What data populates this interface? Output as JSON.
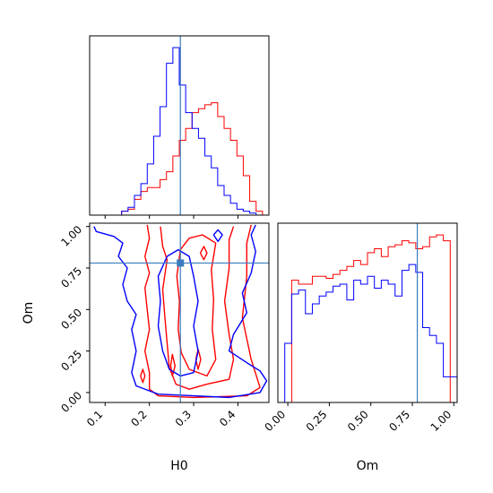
{
  "chart_data": {
    "type": "corner",
    "parameters": [
      "H0",
      "Om"
    ],
    "truths": {
      "H0": 0.27,
      "Om": 0.78
    },
    "colors": {
      "truth": "#3b7bbf",
      "series_a": "#ff0000",
      "series_b": "#0000ff",
      "axes": "#000000"
    },
    "marginals": [
      {
        "parameter": "H0",
        "xlim": [
          0.065,
          0.47
        ],
        "bins": 28,
        "series": [
          {
            "color": "#ff0000",
            "values": [
              0,
              0,
              0,
              0,
              0,
              0.02,
              0.03,
              0.08,
              0.12,
              0.14,
              0.14,
              0.18,
              0.22,
              0.3,
              0.38,
              0.44,
              0.52,
              0.54,
              0.56,
              0.57,
              0.5,
              0.44,
              0.38,
              0.3,
              0.2,
              0.07,
              0.02,
              0
            ]
          },
          {
            "color": "#0000ff",
            "values": [
              0,
              0,
              0,
              0,
              0,
              0.02,
              0.04,
              0.1,
              0.16,
              0.26,
              0.4,
              0.55,
              0.77,
              0.85,
              0.66,
              0.52,
              0.44,
              0.39,
              0.3,
              0.24,
              0.15,
              0.1,
              0.06,
              0.03,
              0.02,
              0.01,
              0,
              0
            ]
          }
        ]
      },
      {
        "parameter": "Om",
        "xlim": [
          -0.06,
          1.02
        ],
        "bins": 26,
        "series": [
          {
            "color": "#ff0000",
            "values": [
              0,
              0,
              0.62,
              0.6,
              0.6,
              0.64,
              0.64,
              0.63,
              0.65,
              0.67,
              0.69,
              0.72,
              0.7,
              0.76,
              0.78,
              0.74,
              0.79,
              0.8,
              0.82,
              0.81,
              0.78,
              0.79,
              0.84,
              0.85,
              0.82,
              0
            ]
          },
          {
            "color": "#0000ff",
            "values": [
              0,
              0.3,
              0.55,
              0.57,
              0.45,
              0.5,
              0.54,
              0.56,
              0.59,
              0.6,
              0.52,
              0.62,
              0.6,
              0.64,
              0.58,
              0.62,
              0.6,
              0.54,
              0.67,
              0.7,
              0.66,
              0.38,
              0.34,
              0.3,
              0.13,
              0.13
            ]
          }
        ]
      }
    ],
    "joint": {
      "x_parameter": "H0",
      "y_parameter": "Om",
      "xlim": [
        0.065,
        0.47
      ],
      "ylim": [
        -0.06,
        1.02
      ],
      "contours": [
        {
          "color": "#ff0000",
          "points": [
            [
              0.195,
              1.01
            ],
            [
              0.2,
              0.93
            ],
            [
              0.19,
              0.82
            ],
            [
              0.2,
              0.72
            ],
            [
              0.19,
              0.63
            ],
            [
              0.195,
              0.5
            ],
            [
              0.2,
              0.38
            ],
            [
              0.19,
              0.25
            ],
            [
              0.2,
              0.12
            ],
            [
              0.2,
              0.02
            ],
            [
              0.22,
              -0.02
            ],
            [
              0.3,
              -0.03
            ],
            [
              0.42,
              -0.02
            ],
            [
              0.45,
              0.03
            ],
            [
              0.43,
              0.2
            ],
            [
              0.41,
              0.45
            ],
            [
              0.42,
              0.7
            ],
            [
              0.42,
              0.9
            ],
            [
              0.43,
              1.01
            ]
          ]
        },
        {
          "color": "#ff0000",
          "points": [
            [
              0.225,
              1.0
            ],
            [
              0.23,
              0.88
            ],
            [
              0.24,
              0.8
            ],
            [
              0.23,
              0.62
            ],
            [
              0.235,
              0.45
            ],
            [
              0.24,
              0.3
            ],
            [
              0.245,
              0.15
            ],
            [
              0.26,
              0.05
            ],
            [
              0.29,
              0.02
            ],
            [
              0.33,
              0.05
            ],
            [
              0.38,
              0.08
            ],
            [
              0.39,
              0.2
            ],
            [
              0.38,
              0.35
            ],
            [
              0.37,
              0.55
            ],
            [
              0.38,
              0.75
            ],
            [
              0.38,
              0.92
            ],
            [
              0.39,
              1.0
            ]
          ]
        },
        {
          "color": "#ff0000",
          "points": [
            [
              0.27,
              0.86
            ],
            [
              0.262,
              0.7
            ],
            [
              0.268,
              0.55
            ],
            [
              0.265,
              0.38
            ],
            [
              0.272,
              0.24
            ],
            [
              0.29,
              0.14
            ],
            [
              0.33,
              0.1
            ],
            [
              0.35,
              0.2
            ],
            [
              0.342,
              0.38
            ],
            [
              0.345,
              0.56
            ],
            [
              0.34,
              0.74
            ],
            [
              0.35,
              0.9
            ],
            [
              0.32,
              0.95
            ],
            [
              0.29,
              0.93
            ],
            [
              0.27,
              0.86
            ]
          ]
        },
        {
          "color": "#ff0000",
          "points": [
            [
              0.305,
              0.2
            ],
            [
              0.31,
              0.26
            ],
            [
              0.316,
              0.2
            ],
            [
              0.31,
              0.14
            ],
            [
              0.305,
              0.2
            ]
          ]
        },
        {
          "color": "#ff0000",
          "points": [
            [
              0.248,
              0.16
            ],
            [
              0.252,
              0.23
            ],
            [
              0.258,
              0.16
            ],
            [
              0.252,
              0.1
            ],
            [
              0.248,
              0.16
            ]
          ]
        },
        {
          "color": "#ff0000",
          "points": [
            [
              0.18,
              0.1
            ],
            [
              0.185,
              0.14
            ],
            [
              0.19,
              0.1
            ],
            [
              0.185,
              0.06
            ],
            [
              0.18,
              0.1
            ]
          ]
        },
        {
          "color": "#ff0000",
          "points": [
            [
              0.315,
              0.84
            ],
            [
              0.323,
              0.88
            ],
            [
              0.33,
              0.84
            ],
            [
              0.323,
              0.8
            ],
            [
              0.315,
              0.84
            ]
          ]
        },
        {
          "color": "#0000ff",
          "points": [
            [
              0.075,
              1.0
            ],
            [
              0.08,
              0.97
            ],
            [
              0.12,
              0.94
            ],
            [
              0.14,
              0.9
            ],
            [
              0.13,
              0.82
            ],
            [
              0.15,
              0.75
            ],
            [
              0.14,
              0.65
            ],
            [
              0.15,
              0.55
            ],
            [
              0.17,
              0.47
            ],
            [
              0.16,
              0.38
            ],
            [
              0.17,
              0.25
            ],
            [
              0.16,
              0.12
            ],
            [
              0.17,
              0.04
            ],
            [
              0.22,
              -0.01
            ],
            [
              0.3,
              -0.02
            ],
            [
              0.38,
              -0.03
            ],
            [
              0.45,
              0.0
            ],
            [
              0.465,
              0.07
            ],
            [
              0.45,
              0.13
            ],
            [
              0.42,
              0.18
            ],
            [
              0.38,
              0.25
            ],
            [
              0.39,
              0.35
            ],
            [
              0.42,
              0.48
            ],
            [
              0.41,
              0.6
            ],
            [
              0.43,
              0.72
            ],
            [
              0.44,
              0.85
            ],
            [
              0.43,
              0.95
            ],
            [
              0.44,
              1.01
            ]
          ]
        },
        {
          "color": "#0000ff",
          "points": [
            [
              0.24,
              0.82
            ],
            [
              0.22,
              0.7
            ],
            [
              0.225,
              0.55
            ],
            [
              0.22,
              0.4
            ],
            [
              0.23,
              0.25
            ],
            [
              0.245,
              0.14
            ],
            [
              0.27,
              0.1
            ],
            [
              0.3,
              0.12
            ],
            [
              0.31,
              0.25
            ],
            [
              0.3,
              0.4
            ],
            [
              0.31,
              0.55
            ],
            [
              0.3,
              0.7
            ],
            [
              0.29,
              0.82
            ],
            [
              0.265,
              0.86
            ],
            [
              0.24,
              0.82
            ]
          ]
        },
        {
          "color": "#0000ff",
          "points": [
            [
              0.345,
              0.95
            ],
            [
              0.355,
              0.98
            ],
            [
              0.365,
              0.95
            ],
            [
              0.355,
              0.91
            ],
            [
              0.345,
              0.95
            ]
          ]
        }
      ]
    },
    "x_ticks": {
      "H0": [
        "0.1",
        "0.2",
        "0.3",
        "0.4"
      ],
      "Om": [
        "0.00",
        "0.25",
        "0.50",
        "0.75",
        "1.00"
      ]
    },
    "y_ticks": {
      "Om": [
        "0.00",
        "0.25",
        "0.50",
        "0.75",
        "1.00"
      ]
    },
    "axis_labels": {
      "x_left": "H0",
      "x_right": "Om",
      "y_left": "Om"
    }
  }
}
